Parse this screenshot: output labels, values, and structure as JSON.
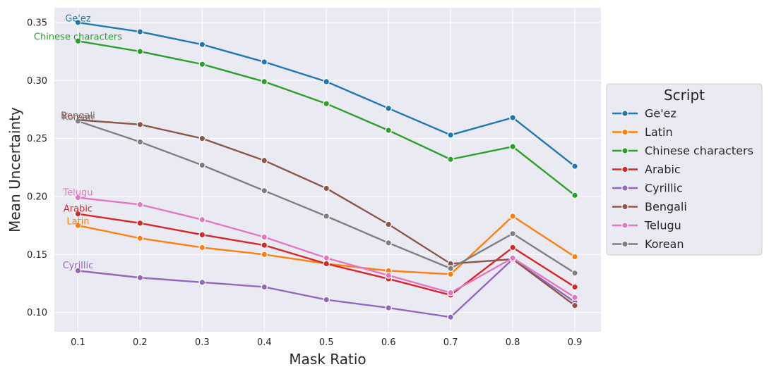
{
  "chart_data": {
    "type": "line",
    "title": "",
    "xlabel": "Mask Ratio",
    "ylabel": "Mean Uncertainty",
    "x": [
      0.1,
      0.2,
      0.3,
      0.4,
      0.5,
      0.6,
      0.7,
      0.8,
      0.9
    ],
    "xticks": [
      "0.1",
      "0.2",
      "0.3",
      "0.4",
      "0.5",
      "0.6",
      "0.7",
      "0.8",
      "0.9"
    ],
    "yticks": [
      "0.10",
      "0.15",
      "0.20",
      "0.25",
      "0.30",
      "0.35"
    ],
    "xlim": [
      0.062,
      0.942
    ],
    "ylim": [
      0.0834,
      0.3627
    ],
    "grid": true,
    "background": "#eaeaf2",
    "legend": {
      "title": "Script",
      "position": "right"
    },
    "series": [
      {
        "name": "Ge'ez",
        "color": "#1f77b4",
        "values": [
          0.35,
          0.342,
          0.331,
          0.316,
          0.299,
          0.276,
          0.253,
          0.268,
          0.226
        ]
      },
      {
        "name": "Latin",
        "color": "#ff7f0e",
        "values": [
          0.175,
          0.164,
          0.156,
          0.15,
          0.142,
          0.136,
          0.133,
          0.183,
          0.148
        ]
      },
      {
        "name": "Chinese characters",
        "color": "#2ca02c",
        "values": [
          0.334,
          0.325,
          0.314,
          0.299,
          0.28,
          0.257,
          0.232,
          0.243,
          0.201
        ]
      },
      {
        "name": "Arabic",
        "color": "#d62728",
        "values": [
          0.185,
          0.177,
          0.167,
          0.158,
          0.142,
          0.129,
          0.115,
          0.156,
          0.122
        ]
      },
      {
        "name": "Cyrillic",
        "color": "#9467bd",
        "values": [
          0.136,
          0.13,
          0.126,
          0.122,
          0.111,
          0.104,
          0.096,
          0.146,
          0.109
        ]
      },
      {
        "name": "Bengali",
        "color": "#8c564b",
        "values": [
          0.266,
          0.262,
          0.25,
          0.231,
          0.207,
          0.176,
          0.142,
          0.146,
          0.106
        ]
      },
      {
        "name": "Telugu",
        "color": "#e377c2",
        "values": [
          0.199,
          0.193,
          0.18,
          0.165,
          0.147,
          0.132,
          0.117,
          0.147,
          0.113
        ]
      },
      {
        "name": "Korean",
        "color": "#7f7f7f",
        "values": [
          0.265,
          0.247,
          0.227,
          0.205,
          0.183,
          0.16,
          0.138,
          0.168,
          0.134
        ]
      }
    ],
    "annotations": [
      {
        "text": "Ge'ez",
        "series": "Ge'ez",
        "x": 0.1,
        "y": 0.351
      },
      {
        "text": "Chinese characters",
        "series": "Chinese characters",
        "x": 0.1,
        "y": 0.335
      },
      {
        "text": "Korean",
        "series": "Korean",
        "x": 0.1,
        "y": 0.266
      },
      {
        "text": "Bengali",
        "series": "Bengali",
        "x": 0.1,
        "y": 0.267
      },
      {
        "text": "Telugu",
        "series": "Telugu",
        "x": 0.1,
        "y": 0.201
      },
      {
        "text": "Arabic",
        "series": "Arabic",
        "x": 0.1,
        "y": 0.187
      },
      {
        "text": "Latin",
        "series": "Latin",
        "x": 0.1,
        "y": 0.176
      },
      {
        "text": "Cyrillic",
        "series": "Cyrillic",
        "x": 0.1,
        "y": 0.138
      }
    ]
  }
}
